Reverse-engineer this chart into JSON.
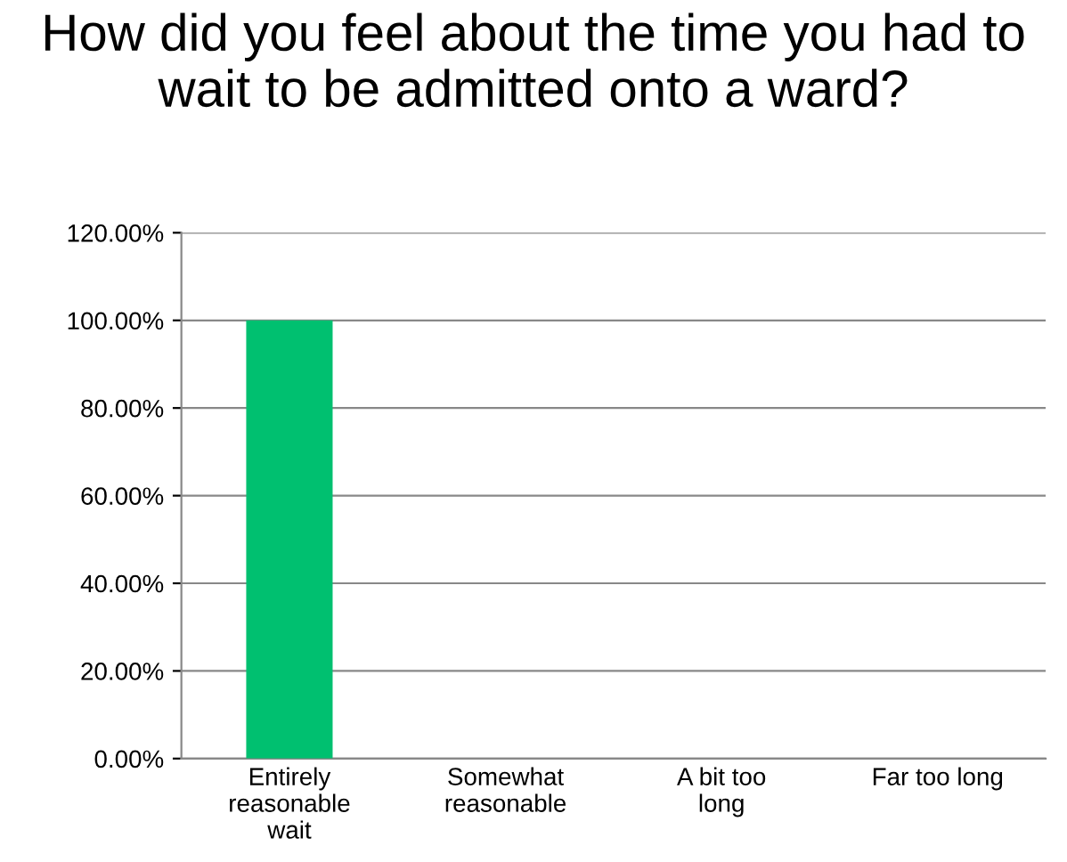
{
  "chart_data": {
    "type": "bar",
    "title": "How did you feel about the time you had to wait to be admitted onto a ward?",
    "categories": [
      "Entirely reasonable wait",
      "Somewhat reasonable",
      "A bit too long",
      "Far too long"
    ],
    "values": [
      100,
      0,
      0,
      0
    ],
    "color": "#00c070",
    "ylim": [
      0,
      120
    ],
    "yticks": [
      {
        "value": 0,
        "label": "0.00%"
      },
      {
        "value": 20,
        "label": "20.00%"
      },
      {
        "value": 40,
        "label": "40.00%"
      },
      {
        "value": 60,
        "label": "60.00%"
      },
      {
        "value": 80,
        "label": "80.00%"
      },
      {
        "value": 100,
        "label": "100.00%"
      },
      {
        "value": 120,
        "label": "120.00%"
      }
    ],
    "grid": "y",
    "legend": false
  }
}
